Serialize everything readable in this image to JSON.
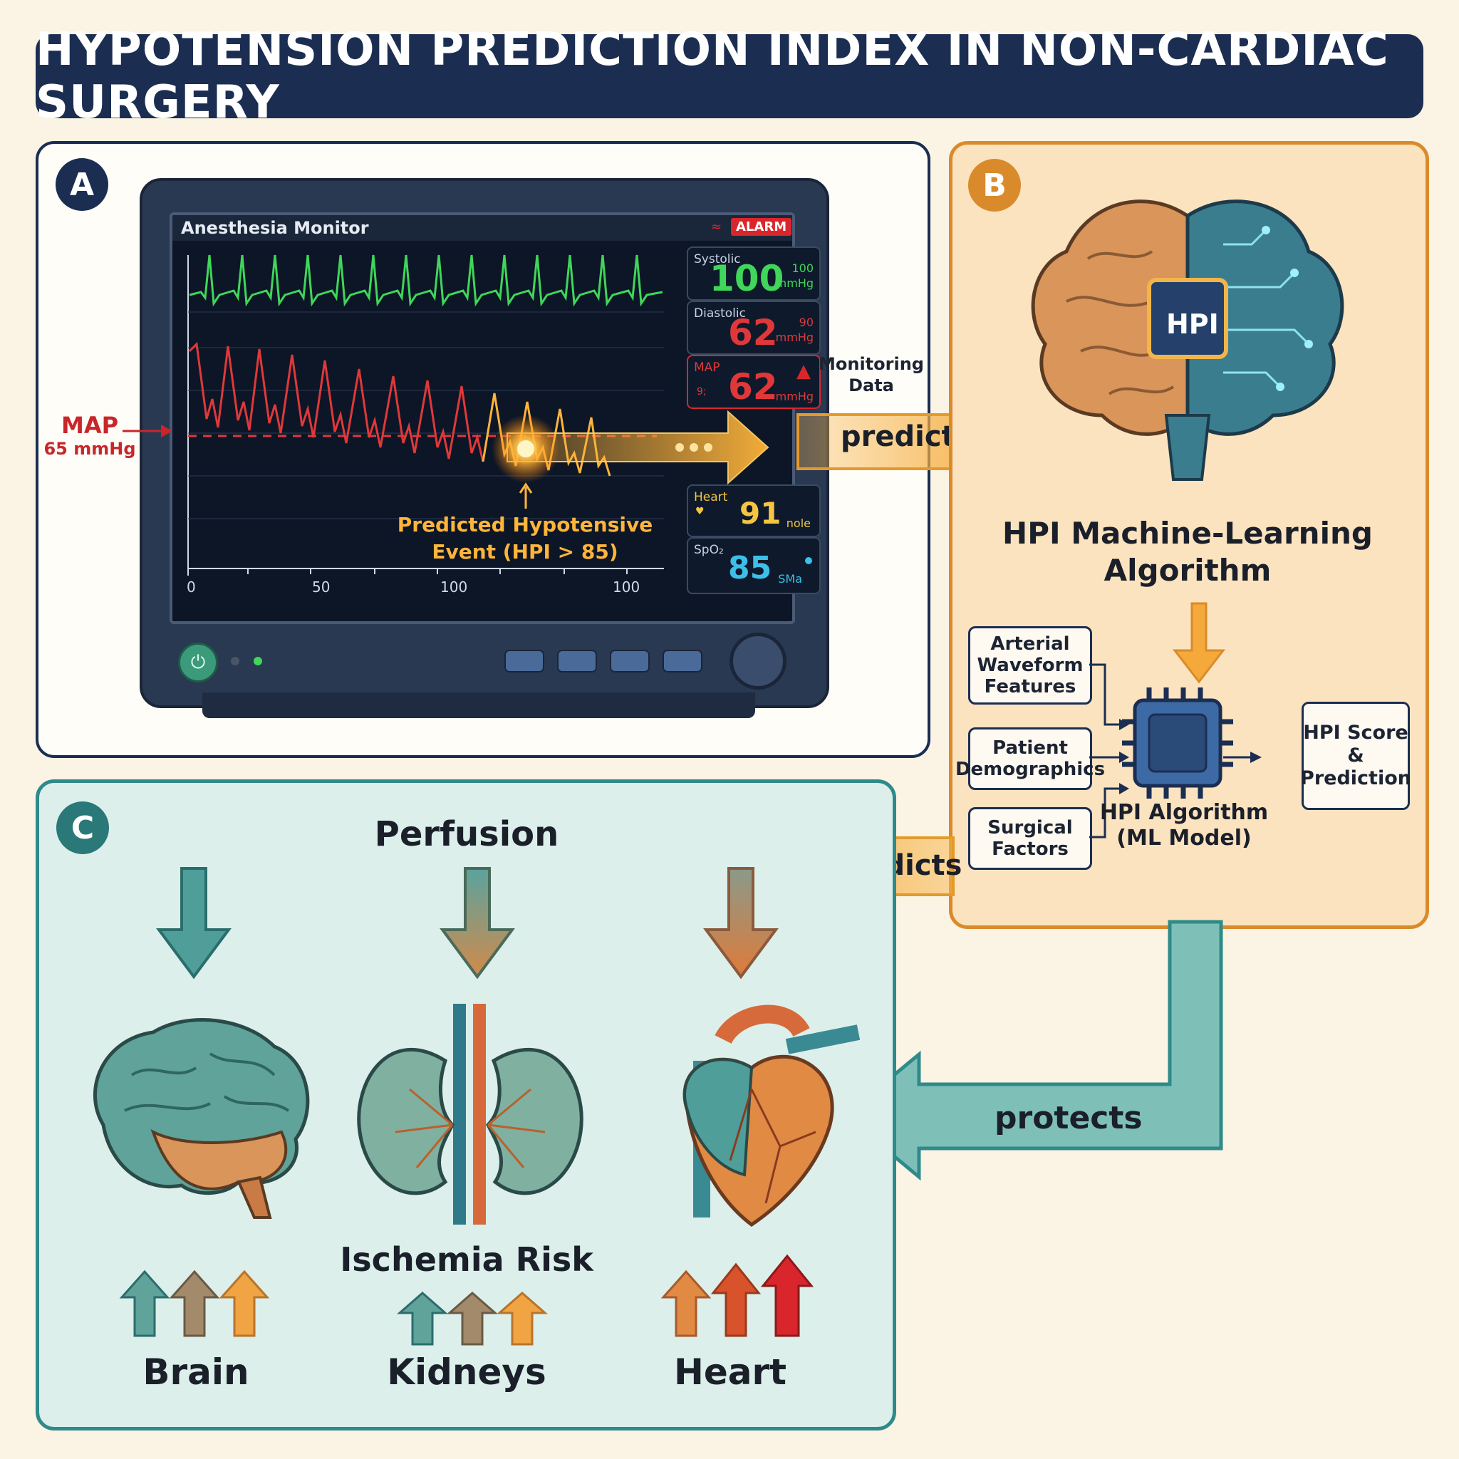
{
  "title": "HYPOTENSION PREDICTION INDEX IN NON-CARDIAC SURGERY",
  "panel_a": {
    "badge": "A",
    "monitor_title": "Anesthesia Monitor",
    "alarm_label": "ALARM",
    "x_axis_ticks": [
      "0",
      "50",
      "100",
      "100"
    ],
    "map_label": "MAP",
    "map_threshold": "65 mmHg",
    "event_label_1": "Predicted Hypotensive",
    "event_label_2": "Event (HPI > 85)",
    "vitals": {
      "systolic": {
        "name": "Systolic",
        "value": "100",
        "sub": "100",
        "unit": "mmHg"
      },
      "diastolic": {
        "name": "Diastolic",
        "value": "62",
        "sub": "90",
        "unit": "mmHg"
      },
      "map": {
        "name": "MAP",
        "value": "62",
        "small": "9;",
        "unit": "mmHg"
      },
      "heart": {
        "name": "Heart",
        "value": "91",
        "unit": "nole"
      },
      "spo2": {
        "name": "SpO₂",
        "value": "85",
        "unit": "SMa"
      }
    }
  },
  "connector_top": {
    "label_1": "Monitoring",
    "label_2": "Data",
    "arrow_text": "predicts"
  },
  "panel_b": {
    "badge": "B",
    "chip_label": "HPI",
    "algorithm_title_1": "HPI Machine-Learning",
    "algorithm_title_2": "Algorithm",
    "inputs": [
      {
        "line1": "Arterial",
        "line2": "Waveform",
        "line3": "Features"
      },
      {
        "line1": "Patient",
        "line2": "Demographics"
      },
      {
        "line1": "Surgical",
        "line2": "Factors"
      }
    ],
    "model_label_1": "HPI Algorithm",
    "model_label_2": "(ML Model)",
    "output_1": "HPI Score",
    "output_2": "&",
    "output_3": "Prediction"
  },
  "connector_mid": {
    "arrow_text": "predicts"
  },
  "connector_bottom": {
    "arrow_text": "protects"
  },
  "panel_c": {
    "badge": "C",
    "perfusion_label": "Perfusion",
    "ischemia_label": "Ischemia Risk",
    "organs": [
      "Brain",
      "Kidneys",
      "Heart"
    ]
  },
  "colors": {
    "navy": "#1b2e52",
    "orange": "#d98b2c",
    "teal": "#2f8a8a",
    "ecg_green": "#3fd65a",
    "pressure_red": "#e0383a",
    "spo2_blue": "#3cc0ea",
    "alarm_red": "#d9262c"
  }
}
